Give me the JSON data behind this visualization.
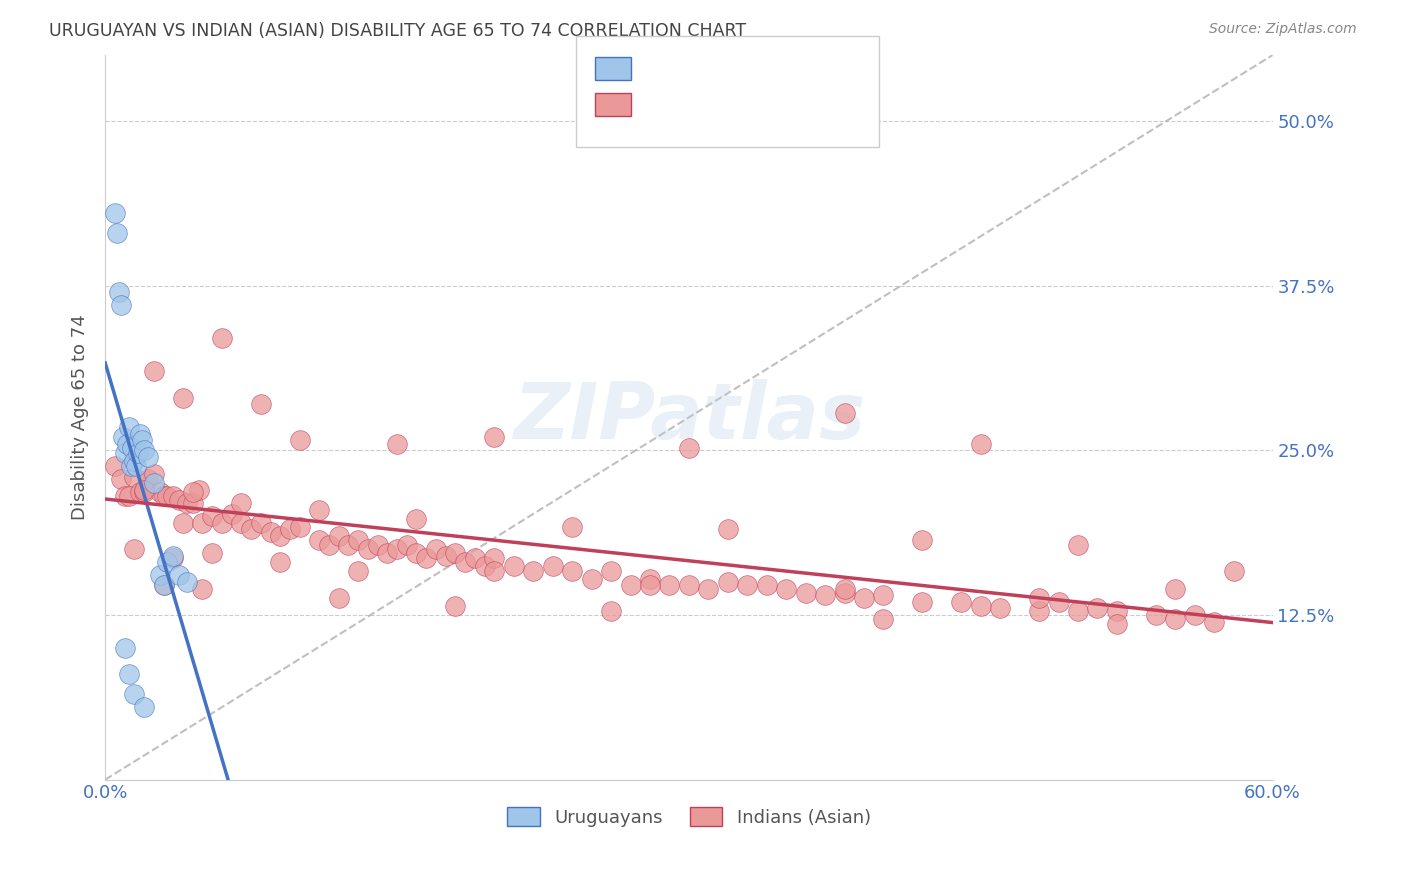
{
  "title": "URUGUAYAN VS INDIAN (ASIAN) DISABILITY AGE 65 TO 74 CORRELATION CHART",
  "source": "Source: ZipAtlas.com",
  "ylabel": "Disability Age 65 to 74",
  "xlim": [
    0.0,
    0.6
  ],
  "ylim": [
    0.0,
    0.55
  ],
  "yticks": [
    0.0,
    0.125,
    0.25,
    0.375,
    0.5
  ],
  "ytick_labels": [
    "",
    "12.5%",
    "25.0%",
    "37.5%",
    "50.0%"
  ],
  "xticks": [
    0.0,
    0.1,
    0.2,
    0.3,
    0.4,
    0.5,
    0.6
  ],
  "xtick_labels": [
    "0.0%",
    "",
    "",
    "",
    "",
    "",
    "60.0%"
  ],
  "blue_color": "#9fc5e8",
  "pink_color": "#ea9999",
  "trend_blue": "#4472c4",
  "trend_pink": "#c0405a",
  "dashed_line_color": "#b0b0b0",
  "grid_color": "#cccccc",
  "tick_label_color": "#4472c4",
  "title_color": "#444444",
  "watermark": "ZIPatlas",
  "uruguayan_x": [
    0.005,
    0.006,
    0.007,
    0.008,
    0.009,
    0.01,
    0.011,
    0.012,
    0.013,
    0.014,
    0.015,
    0.016,
    0.017,
    0.018,
    0.019,
    0.02,
    0.022,
    0.025,
    0.028,
    0.03,
    0.032,
    0.035,
    0.038,
    0.042,
    0.01,
    0.012,
    0.015,
    0.02
  ],
  "uruguayan_y": [
    0.43,
    0.415,
    0.37,
    0.36,
    0.26,
    0.248,
    0.255,
    0.268,
    0.238,
    0.252,
    0.242,
    0.238,
    0.248,
    0.262,
    0.258,
    0.25,
    0.245,
    0.225,
    0.155,
    0.148,
    0.165,
    0.17,
    0.155,
    0.15,
    0.1,
    0.08,
    0.065,
    0.055
  ],
  "indian_x": [
    0.005,
    0.008,
    0.01,
    0.012,
    0.015,
    0.018,
    0.02,
    0.022,
    0.025,
    0.028,
    0.03,
    0.032,
    0.035,
    0.038,
    0.04,
    0.042,
    0.045,
    0.048,
    0.05,
    0.055,
    0.06,
    0.065,
    0.07,
    0.075,
    0.08,
    0.085,
    0.09,
    0.095,
    0.1,
    0.11,
    0.115,
    0.12,
    0.125,
    0.13,
    0.135,
    0.14,
    0.145,
    0.15,
    0.155,
    0.16,
    0.165,
    0.17,
    0.175,
    0.18,
    0.185,
    0.19,
    0.195,
    0.2,
    0.21,
    0.22,
    0.23,
    0.24,
    0.25,
    0.26,
    0.27,
    0.28,
    0.29,
    0.3,
    0.31,
    0.32,
    0.33,
    0.34,
    0.35,
    0.36,
    0.37,
    0.38,
    0.39,
    0.4,
    0.42,
    0.44,
    0.45,
    0.46,
    0.48,
    0.49,
    0.5,
    0.51,
    0.52,
    0.54,
    0.55,
    0.56,
    0.57,
    0.58,
    0.025,
    0.04,
    0.06,
    0.08,
    0.1,
    0.15,
    0.2,
    0.3,
    0.38,
    0.45,
    0.015,
    0.035,
    0.055,
    0.09,
    0.13,
    0.2,
    0.28,
    0.38,
    0.48,
    0.55,
    0.02,
    0.045,
    0.07,
    0.11,
    0.16,
    0.24,
    0.32,
    0.42,
    0.5,
    0.03,
    0.05,
    0.12,
    0.18,
    0.26,
    0.4,
    0.52
  ],
  "indian_y": [
    0.238,
    0.228,
    0.215,
    0.215,
    0.23,
    0.218,
    0.218,
    0.228,
    0.232,
    0.218,
    0.215,
    0.215,
    0.215,
    0.212,
    0.195,
    0.21,
    0.21,
    0.22,
    0.195,
    0.2,
    0.195,
    0.202,
    0.195,
    0.19,
    0.195,
    0.188,
    0.185,
    0.19,
    0.192,
    0.182,
    0.178,
    0.185,
    0.178,
    0.182,
    0.175,
    0.178,
    0.172,
    0.175,
    0.178,
    0.172,
    0.168,
    0.175,
    0.17,
    0.172,
    0.165,
    0.168,
    0.162,
    0.168,
    0.162,
    0.158,
    0.162,
    0.158,
    0.152,
    0.158,
    0.148,
    0.152,
    0.148,
    0.148,
    0.145,
    0.15,
    0.148,
    0.148,
    0.145,
    0.142,
    0.14,
    0.142,
    0.138,
    0.14,
    0.135,
    0.135,
    0.132,
    0.13,
    0.128,
    0.135,
    0.128,
    0.13,
    0.128,
    0.125,
    0.122,
    0.125,
    0.12,
    0.158,
    0.31,
    0.29,
    0.335,
    0.285,
    0.258,
    0.255,
    0.26,
    0.252,
    0.278,
    0.255,
    0.175,
    0.168,
    0.172,
    0.165,
    0.158,
    0.158,
    0.148,
    0.145,
    0.138,
    0.145,
    0.22,
    0.218,
    0.21,
    0.205,
    0.198,
    0.192,
    0.19,
    0.182,
    0.178,
    0.148,
    0.145,
    0.138,
    0.132,
    0.128,
    0.122,
    0.118
  ]
}
